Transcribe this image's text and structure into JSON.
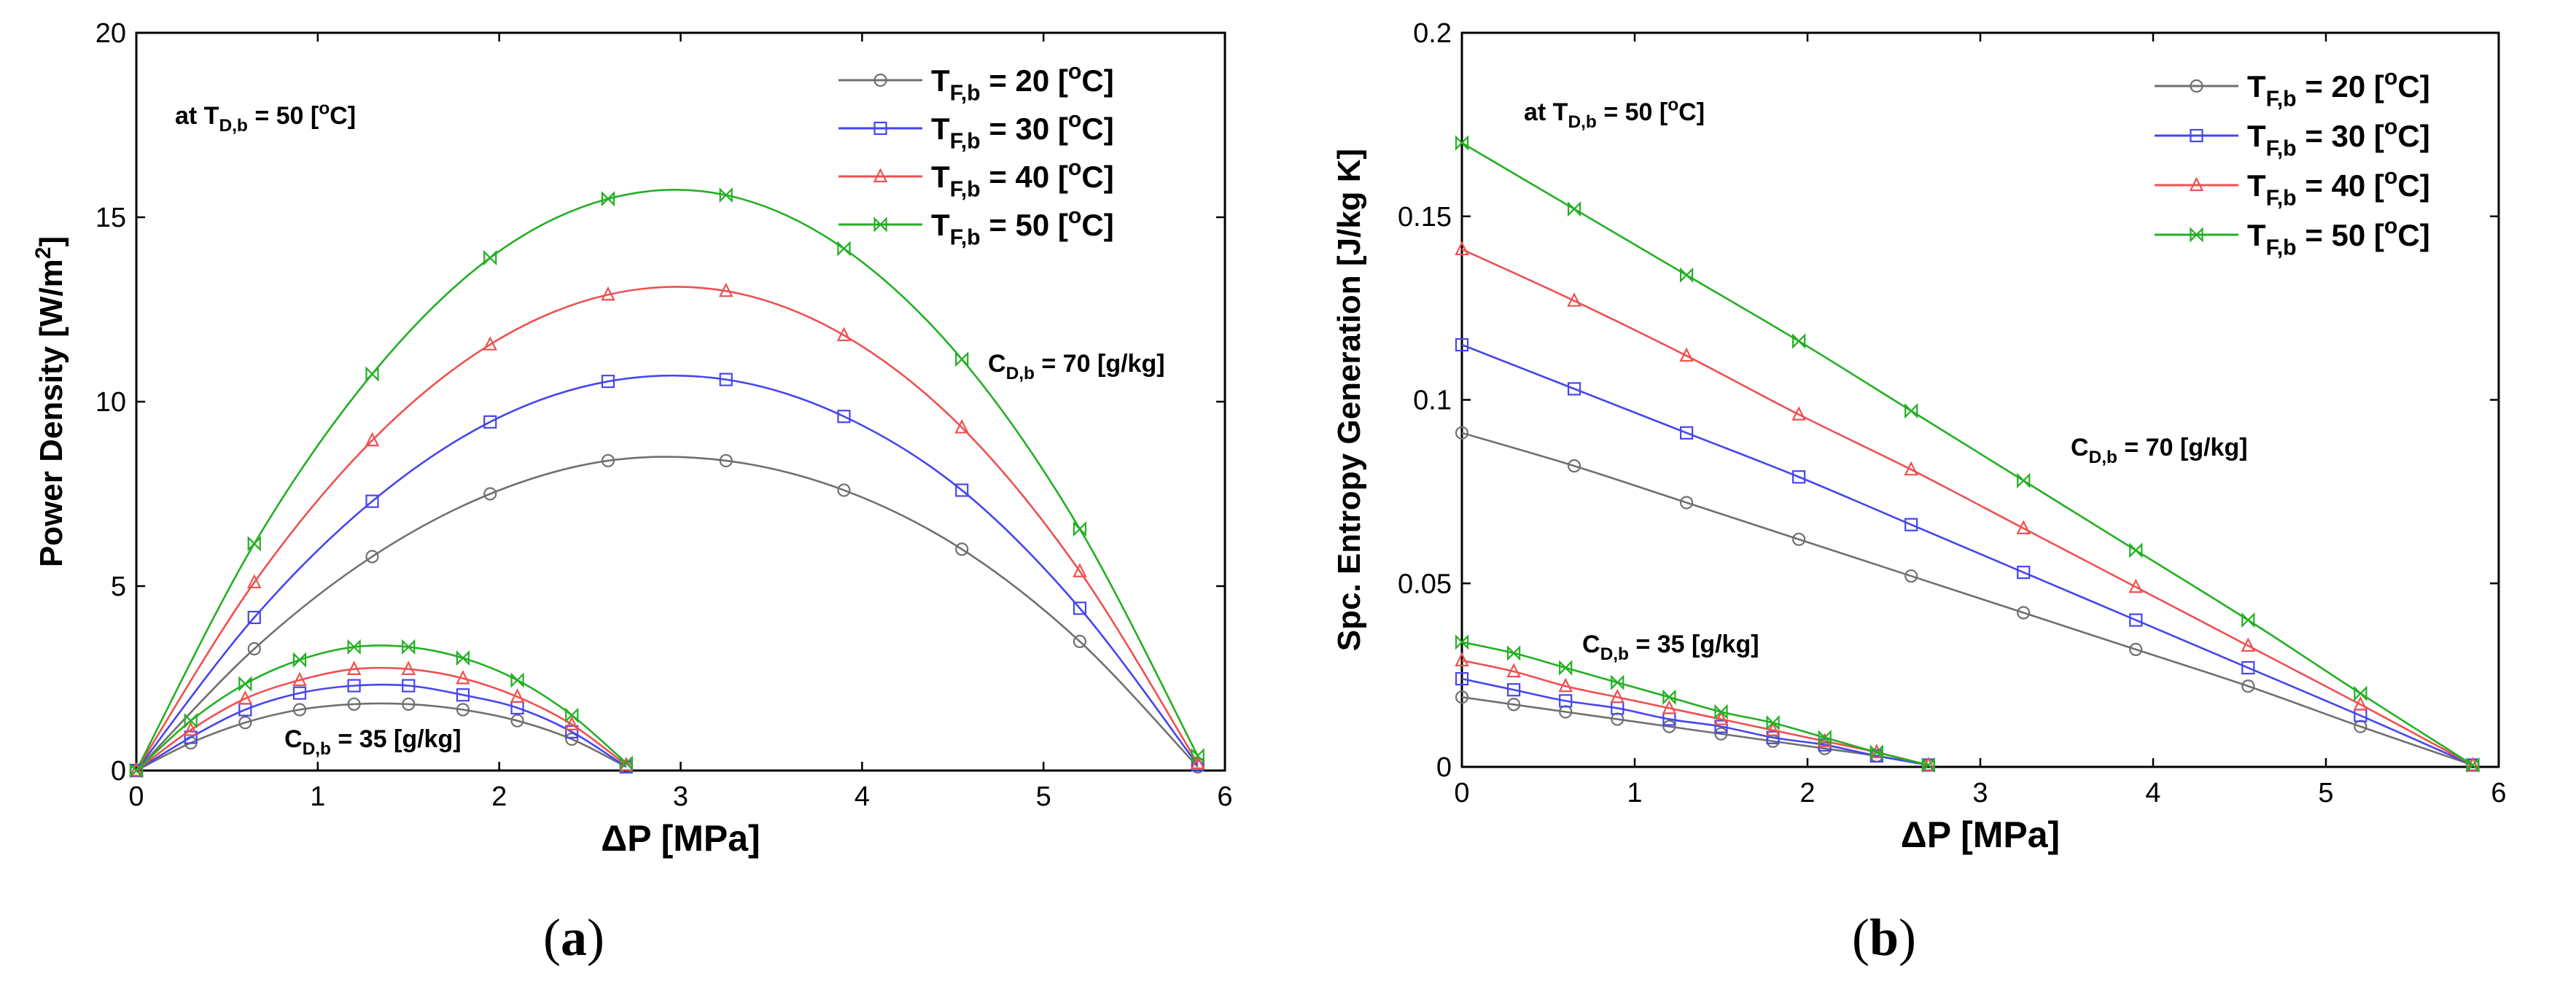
{
  "series_colors": {
    "TF20": "#707070",
    "TF30": "#4646f0",
    "TF40": "#f05050",
    "TF50": "#22b022"
  },
  "series_markers": {
    "TF20": "circle",
    "TF30": "square",
    "TF40": "triangle",
    "TF50": "bowtie"
  },
  "legend": [
    {
      "key": "TF20",
      "base": "T",
      "sub": "F,b",
      "value": " = 20  [",
      "sup": "o",
      "unit": "C]"
    },
    {
      "key": "TF30",
      "base": "T",
      "sub": "F,b",
      "value": " = 30  [",
      "sup": "o",
      "unit": "C]"
    },
    {
      "key": "TF40",
      "base": "T",
      "sub": "F,b",
      "value": " = 40  [",
      "sup": "o",
      "unit": "C]"
    },
    {
      "key": "TF50",
      "base": "T",
      "sub": "F,b",
      "value": " = 50  [",
      "sup": "o",
      "unit": "C]"
    }
  ],
  "captions": [
    "(a)",
    "(b)"
  ],
  "chart_data": [
    {
      "type": "line",
      "id": "a",
      "ylabel": "Power Density [W/m",
      "ylabel_sup": "2",
      "ylabel_end": "]",
      "xlabel": "ΔP  [MPa]",
      "xlim": [
        0,
        6
      ],
      "ylim": [
        0,
        20
      ],
      "xticks": [
        0,
        1,
        2,
        3,
        4,
        5,
        6
      ],
      "yticks": [
        0,
        5,
        10,
        15,
        20
      ],
      "ytick_labels": [
        "0",
        "5",
        "10",
        "15",
        "20"
      ],
      "legend_position": "top-right",
      "annotations": [
        {
          "id": "cond",
          "parts": [
            "at T",
            "D,b",
            " = 50 [",
            "o",
            "C]"
          ]
        },
        {
          "id": "c70",
          "parts": [
            "C",
            "D,b",
            " = 70 [g/kg]"
          ]
        },
        {
          "id": "c35",
          "parts": [
            "C",
            "D,b",
            " = 35 [g/kg]"
          ]
        }
      ],
      "series": [
        {
          "name": "TF20 Cd70",
          "key": "TF20",
          "x": [
            0,
            0.65,
            1.3,
            1.95,
            2.6,
            3.25,
            3.9,
            4.55,
            5.2,
            5.85
          ],
          "y": [
            0,
            3.3,
            5.8,
            7.5,
            8.4,
            8.4,
            7.6,
            6.0,
            3.5,
            0.1
          ]
        },
        {
          "name": "TF30 Cd70",
          "key": "TF30",
          "x": [
            0,
            0.65,
            1.3,
            1.95,
            2.6,
            3.25,
            3.9,
            4.55,
            5.2,
            5.85
          ],
          "y": [
            0,
            4.15,
            7.3,
            9.45,
            10.55,
            10.6,
            9.6,
            7.6,
            4.4,
            0.15
          ]
        },
        {
          "name": "TF40 Cd70",
          "key": "TF40",
          "x": [
            0,
            0.65,
            1.3,
            1.95,
            2.6,
            3.25,
            3.9,
            4.55,
            5.2,
            5.85
          ],
          "y": [
            0,
            5.1,
            8.95,
            11.55,
            12.9,
            13.0,
            11.8,
            9.3,
            5.4,
            0.2
          ]
        },
        {
          "name": "TF50 Cd70",
          "key": "TF50",
          "x": [
            0,
            0.65,
            1.3,
            1.95,
            2.6,
            3.25,
            3.9,
            4.55,
            5.2,
            5.85
          ],
          "y": [
            0,
            6.15,
            10.75,
            13.9,
            15.5,
            15.6,
            14.15,
            11.15,
            6.55,
            0.4
          ]
        },
        {
          "name": "TF20 Cd35",
          "key": "TF20",
          "x": [
            0,
            0.3,
            0.6,
            0.9,
            1.2,
            1.5,
            1.8,
            2.1,
            2.4,
            2.7
          ],
          "y": [
            0,
            0.75,
            1.3,
            1.65,
            1.8,
            1.8,
            1.65,
            1.35,
            0.85,
            0.1
          ]
        },
        {
          "name": "TF30 Cd35",
          "key": "TF30",
          "x": [
            0,
            0.3,
            0.6,
            0.9,
            1.2,
            1.5,
            1.8,
            2.1,
            2.4,
            2.7
          ],
          "y": [
            0,
            0.9,
            1.65,
            2.1,
            2.3,
            2.3,
            2.05,
            1.7,
            1.05,
            0.1
          ]
        },
        {
          "name": "TF40 Cd35",
          "key": "TF40",
          "x": [
            0,
            0.3,
            0.6,
            0.9,
            1.2,
            1.5,
            1.8,
            2.1,
            2.4,
            2.7
          ],
          "y": [
            0,
            1.1,
            1.95,
            2.45,
            2.75,
            2.75,
            2.5,
            2.0,
            1.25,
            0.15
          ]
        },
        {
          "name": "TF50 Cd35",
          "key": "TF50",
          "x": [
            0,
            0.3,
            0.6,
            0.9,
            1.2,
            1.5,
            1.8,
            2.1,
            2.4,
            2.7
          ],
          "y": [
            0,
            1.35,
            2.35,
            3.0,
            3.35,
            3.35,
            3.05,
            2.45,
            1.5,
            0.2
          ]
        }
      ]
    },
    {
      "type": "line",
      "id": "b",
      "ylabel": "Spc. Entropy Generation [J/kg K]",
      "ylabel_sup": "",
      "ylabel_end": "",
      "xlabel": "ΔP  [MPa]",
      "xlim": [
        0,
        6
      ],
      "ylim": [
        0,
        0.2
      ],
      "xticks": [
        0,
        1,
        2,
        3,
        4,
        5,
        6
      ],
      "yticks": [
        0,
        0.05,
        0.1,
        0.15,
        0.2
      ],
      "ytick_labels": [
        "0",
        "0.05",
        "0.1",
        "0.15",
        "0.2"
      ],
      "legend_position": "top-right",
      "annotations": [
        {
          "id": "cond",
          "parts": [
            "at T",
            "D,b",
            " = 50 [",
            "o",
            "C]"
          ]
        },
        {
          "id": "c70",
          "parts": [
            "C",
            "D,b",
            " = 70 [g/kg]"
          ]
        },
        {
          "id": "c35",
          "parts": [
            "C",
            "D,b",
            " = 35 [g/kg]"
          ]
        }
      ],
      "series": [
        {
          "name": "TF20 Cd70",
          "key": "TF20",
          "x": [
            0,
            0.65,
            1.3,
            1.95,
            2.6,
            3.25,
            3.9,
            4.55,
            5.2,
            5.85
          ],
          "y": [
            0.091,
            0.082,
            0.072,
            0.062,
            0.052,
            0.042,
            0.032,
            0.022,
            0.011,
            0.0005
          ]
        },
        {
          "name": "TF30 Cd70",
          "key": "TF30",
          "x": [
            0,
            0.65,
            1.3,
            1.95,
            2.6,
            3.25,
            3.9,
            4.55,
            5.2,
            5.85
          ],
          "y": [
            0.115,
            0.103,
            0.091,
            0.079,
            0.066,
            0.053,
            0.04,
            0.027,
            0.014,
            0.0005
          ]
        },
        {
          "name": "TF40 Cd70",
          "key": "TF40",
          "x": [
            0,
            0.65,
            1.3,
            1.95,
            2.6,
            3.25,
            3.9,
            4.55,
            5.2,
            5.85
          ],
          "y": [
            0.141,
            0.127,
            0.112,
            0.096,
            0.081,
            0.065,
            0.049,
            0.033,
            0.017,
            0.0005
          ]
        },
        {
          "name": "TF50 Cd70",
          "key": "TF50",
          "x": [
            0,
            0.65,
            1.3,
            1.95,
            2.6,
            3.25,
            3.9,
            4.55,
            5.2,
            5.85
          ],
          "y": [
            0.17,
            0.152,
            0.134,
            0.116,
            0.097,
            0.078,
            0.059,
            0.04,
            0.02,
            0.0005
          ]
        },
        {
          "name": "TF20 Cd35",
          "key": "TF20",
          "x": [
            0,
            0.3,
            0.6,
            0.9,
            1.2,
            1.5,
            1.8,
            2.1,
            2.4,
            2.7
          ],
          "y": [
            0.019,
            0.017,
            0.015,
            0.013,
            0.011,
            0.009,
            0.007,
            0.005,
            0.003,
            0.0005
          ]
        },
        {
          "name": "TF30 Cd35",
          "key": "TF30",
          "x": [
            0,
            0.3,
            0.6,
            0.9,
            1.2,
            1.5,
            1.8,
            2.1,
            2.4,
            2.7
          ],
          "y": [
            0.024,
            0.021,
            0.018,
            0.016,
            0.013,
            0.011,
            0.008,
            0.006,
            0.003,
            0.0005
          ]
        },
        {
          "name": "TF40 Cd35",
          "key": "TF40",
          "x": [
            0,
            0.3,
            0.6,
            0.9,
            1.2,
            1.5,
            1.8,
            2.1,
            2.4,
            2.7
          ],
          "y": [
            0.029,
            0.026,
            0.022,
            0.019,
            0.016,
            0.013,
            0.01,
            0.007,
            0.004,
            0.0005
          ]
        },
        {
          "name": "TF50 Cd35",
          "key": "TF50",
          "x": [
            0,
            0.3,
            0.6,
            0.9,
            1.2,
            1.5,
            1.8,
            2.1,
            2.4,
            2.7
          ],
          "y": [
            0.034,
            0.031,
            0.027,
            0.023,
            0.019,
            0.015,
            0.012,
            0.008,
            0.004,
            0.0005
          ]
        }
      ]
    }
  ]
}
